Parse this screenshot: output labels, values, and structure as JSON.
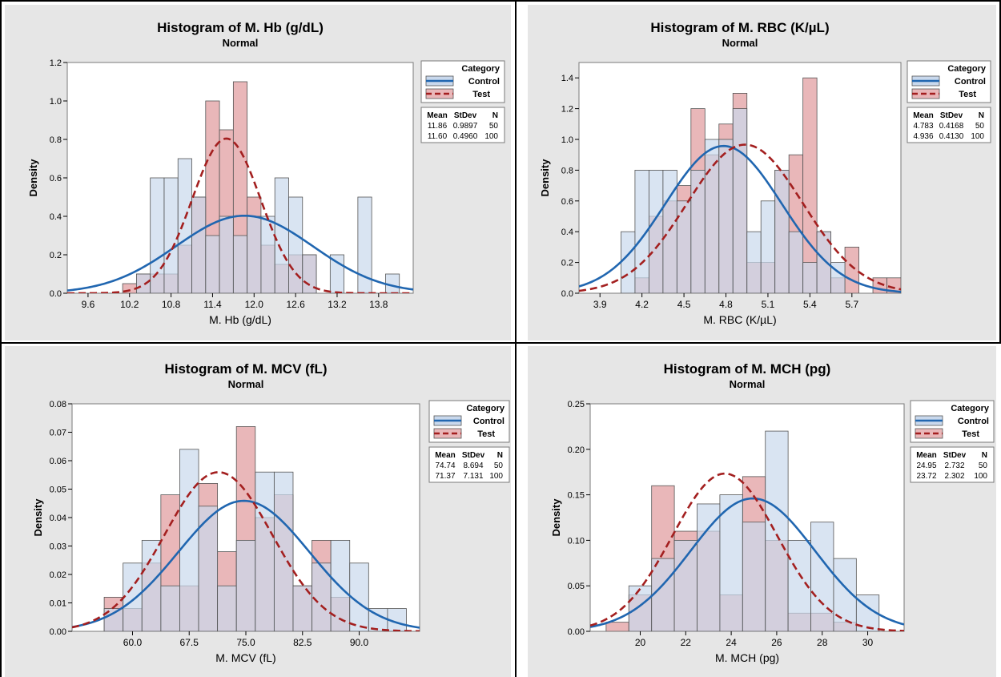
{
  "chart_data": [
    {
      "type": "histogram",
      "title": "Histogram of M. Hb (g/dL)",
      "subtitle": "Normal",
      "xlabel": "M. Hb (g/dL)",
      "ylabel": "Density",
      "xlim": [
        9.3,
        14.3
      ],
      "ylim": [
        0,
        1.2
      ],
      "xticks": [
        9.6,
        10.2,
        10.8,
        11.4,
        12.0,
        12.6,
        13.2,
        13.8
      ],
      "xtick_labels": [
        "9.6",
        "10.2",
        "10.8",
        "11.4",
        "12.0",
        "12.6",
        "13.2",
        "13.8"
      ],
      "yticks": [
        0,
        0.2,
        0.4,
        0.6,
        0.8,
        1.0,
        1.2
      ],
      "ytick_labels": [
        "0.0",
        "0.2",
        "0.4",
        "0.6",
        "0.8",
        "1.0",
        "1.2"
      ],
      "bin_width": 0.2,
      "legend": {
        "title": "Category",
        "entries": [
          "Control",
          "Test"
        ],
        "stats_headers": [
          "Mean",
          "StDev",
          "N"
        ]
      },
      "series": [
        {
          "name": "Control",
          "color": "#2066b0",
          "fill": "#c9d8ec",
          "bins_start": [
            10.3,
            10.5,
            10.7,
            10.9,
            11.1,
            11.3,
            11.5,
            11.7,
            11.9,
            12.1,
            12.3,
            12.5,
            12.7,
            12.9,
            13.1,
            13.3,
            13.5,
            13.7,
            13.9
          ],
          "density": [
            0.1,
            0.6,
            0.6,
            0.7,
            0.5,
            0.3,
            0.4,
            0.3,
            0.4,
            0.4,
            0.6,
            0.5,
            0.2,
            0.0,
            0.2,
            0.0,
            0.5,
            0.0,
            0.1
          ],
          "mean": 11.86,
          "stdev": 0.9897,
          "n": 50,
          "stats": [
            "11.86",
            "0.9897",
            "50"
          ]
        },
        {
          "name": "Test",
          "color": "#a31f1f",
          "fill": "#e9b7b9",
          "bins_start": [
            10.1,
            10.3,
            10.5,
            10.7,
            10.9,
            11.1,
            11.3,
            11.5,
            11.7,
            11.9,
            12.1,
            12.3,
            12.5,
            12.7,
            12.9
          ],
          "density": [
            0.05,
            0.1,
            0.1,
            0.1,
            0.25,
            0.5,
            1.0,
            0.85,
            1.1,
            0.5,
            0.25,
            0.15,
            0.2,
            0.2,
            0.0
          ],
          "mean": 11.6,
          "stdev": 0.496,
          "n": 100,
          "stats": [
            "11.60",
            "0.4960",
            "100"
          ]
        }
      ]
    },
    {
      "type": "histogram",
      "title": "Histogram of M. RBC (K/µL)",
      "subtitle": "Normal",
      "xlabel": "M. RBC (K/µL)",
      "ylabel": "Density",
      "xlim": [
        3.75,
        6.05
      ],
      "ylim": [
        0,
        1.5
      ],
      "xticks": [
        3.9,
        4.2,
        4.5,
        4.8,
        5.1,
        5.4,
        5.7
      ],
      "xtick_labels": [
        "3.9",
        "4.2",
        "4.5",
        "4.8",
        "5.1",
        "5.4",
        "5.7"
      ],
      "yticks": [
        0,
        0.2,
        0.4,
        0.6,
        0.8,
        1.0,
        1.2,
        1.4
      ],
      "ytick_labels": [
        "0.0",
        "0.2",
        "0.4",
        "0.6",
        "0.8",
        "1.0",
        "1.2",
        "1.4"
      ],
      "bin_width": 0.1,
      "legend": {
        "title": "Category",
        "entries": [
          "Control",
          "Test"
        ],
        "stats_headers": [
          "Mean",
          "StDev",
          "N"
        ]
      },
      "series": [
        {
          "name": "Control",
          "color": "#2066b0",
          "fill": "#c9d8ec",
          "bins_start": [
            4.05,
            4.15,
            4.25,
            4.35,
            4.45,
            4.55,
            4.65,
            4.75,
            4.85,
            4.95,
            5.05,
            5.15,
            5.25,
            5.35,
            5.45,
            5.55,
            5.65
          ],
          "density": [
            0.4,
            0.8,
            0.8,
            0.8,
            0.6,
            0.8,
            1.0,
            1.0,
            1.2,
            0.4,
            0.6,
            0.8,
            0.4,
            0.2,
            0.4,
            0.2,
            0.0
          ],
          "mean": 4.783,
          "stdev": 0.4168,
          "n": 50,
          "stats": [
            "4.783",
            "0.4168",
            "50"
          ]
        },
        {
          "name": "Test",
          "color": "#a31f1f",
          "fill": "#e9b7b9",
          "bins_start": [
            4.15,
            4.25,
            4.35,
            4.45,
            4.55,
            4.65,
            4.75,
            4.85,
            4.95,
            5.05,
            5.15,
            5.25,
            5.35,
            5.45,
            5.55,
            5.65,
            5.75,
            5.85,
            5.95
          ],
          "density": [
            0.1,
            0.5,
            0.6,
            0.7,
            1.2,
            0.9,
            1.1,
            1.3,
            0.2,
            0.2,
            0.8,
            0.9,
            1.4,
            0.4,
            0.1,
            0.3,
            0.0,
            0.1,
            0.1
          ],
          "mean": 4.936,
          "stdev": 0.413,
          "n": 100,
          "stats": [
            "4.936",
            "0.4130",
            "100"
          ]
        }
      ]
    },
    {
      "type": "histogram",
      "title": "Histogram of M. MCV (fL)",
      "subtitle": "Normal",
      "xlabel": "M. MCV (fL)",
      "ylabel": "Density",
      "xlim": [
        52,
        98
      ],
      "ylim": [
        0,
        0.08
      ],
      "xticks": [
        60.0,
        67.5,
        75.0,
        82.5,
        90.0
      ],
      "xtick_labels": [
        "60.0",
        "67.5",
        "75.0",
        "82.5",
        "90.0"
      ],
      "yticks": [
        0,
        0.01,
        0.02,
        0.03,
        0.04,
        0.05,
        0.06,
        0.07,
        0.08
      ],
      "ytick_labels": [
        "0.00",
        "0.01",
        "0.02",
        "0.03",
        "0.04",
        "0.05",
        "0.06",
        "0.07",
        "0.08"
      ],
      "bin_width": 2.5,
      "legend": {
        "title": "Category",
        "entries": [
          "Control",
          "Test"
        ],
        "stats_headers": [
          "Mean",
          "StDev",
          "N"
        ]
      },
      "series": [
        {
          "name": "Control",
          "color": "#2066b0",
          "fill": "#c9d8ec",
          "bins_start": [
            56.25,
            58.75,
            61.25,
            63.75,
            66.25,
            68.75,
            71.25,
            73.75,
            76.25,
            78.75,
            81.25,
            83.75,
            86.25,
            88.75,
            91.25,
            93.75
          ],
          "density": [
            0.008,
            0.024,
            0.032,
            0.016,
            0.064,
            0.044,
            0.016,
            0.032,
            0.056,
            0.056,
            0.016,
            0.024,
            0.032,
            0.024,
            0.008,
            0.008
          ],
          "mean": 74.74,
          "stdev": 8.694,
          "n": 50,
          "stats": [
            "74.74",
            "8.694",
            "50"
          ]
        },
        {
          "name": "Test",
          "color": "#a31f1f",
          "fill": "#e9b7b9",
          "bins_start": [
            56.25,
            58.75,
            61.25,
            63.75,
            66.25,
            68.75,
            71.25,
            73.75,
            76.25,
            78.75,
            81.25,
            83.75,
            86.25,
            88.75
          ],
          "density": [
            0.012,
            0.008,
            0.024,
            0.048,
            0.016,
            0.052,
            0.028,
            0.072,
            0.04,
            0.048,
            0.016,
            0.032,
            0.012,
            0.0
          ],
          "mean": 71.37,
          "stdev": 7.131,
          "n": 100,
          "stats": [
            "71.37",
            "7.131",
            "100"
          ]
        }
      ]
    },
    {
      "type": "histogram",
      "title": "Histogram of M. MCH (pg)",
      "subtitle": "Normal",
      "xlabel": "M. MCH (pg)",
      "ylabel": "Density",
      "xlim": [
        17.8,
        31.6
      ],
      "ylim": [
        0,
        0.25
      ],
      "xticks": [
        20,
        22,
        24,
        26,
        28,
        30
      ],
      "xtick_labels": [
        "20",
        "22",
        "24",
        "26",
        "28",
        "30"
      ],
      "yticks": [
        0,
        0.05,
        0.1,
        0.15,
        0.2,
        0.25
      ],
      "ytick_labels": [
        "0.00",
        "0.05",
        "0.10",
        "0.15",
        "0.20",
        "0.25"
      ],
      "bin_width": 1,
      "legend": {
        "title": "Category",
        "entries": [
          "Control",
          "Test"
        ],
        "stats_headers": [
          "Mean",
          "StDev",
          "N"
        ]
      },
      "series": [
        {
          "name": "Control",
          "color": "#2066b0",
          "fill": "#c9d8ec",
          "bins_start": [
            19.5,
            20.5,
            21.5,
            22.5,
            23.5,
            24.5,
            25.5,
            26.5,
            27.5,
            28.5,
            29.5
          ],
          "density": [
            0.05,
            0.08,
            0.1,
            0.14,
            0.15,
            0.12,
            0.22,
            0.1,
            0.12,
            0.08,
            0.04
          ],
          "mean": 24.95,
          "stdev": 2.732,
          "n": 50,
          "stats": [
            "24.95",
            "2.732",
            "50"
          ]
        },
        {
          "name": "Test",
          "color": "#a31f1f",
          "fill": "#e9b7b9",
          "bins_start": [
            18.5,
            19.5,
            20.5,
            21.5,
            22.5,
            23.5,
            24.5,
            25.5,
            26.5,
            27.5,
            28.5
          ],
          "density": [
            0.01,
            0.04,
            0.16,
            0.11,
            0.11,
            0.04,
            0.17,
            0.1,
            0.02,
            0.02,
            0.01
          ],
          "mean": 23.72,
          "stdev": 2.302,
          "n": 100,
          "stats": [
            "23.72",
            "2.302",
            "100"
          ]
        }
      ]
    }
  ]
}
